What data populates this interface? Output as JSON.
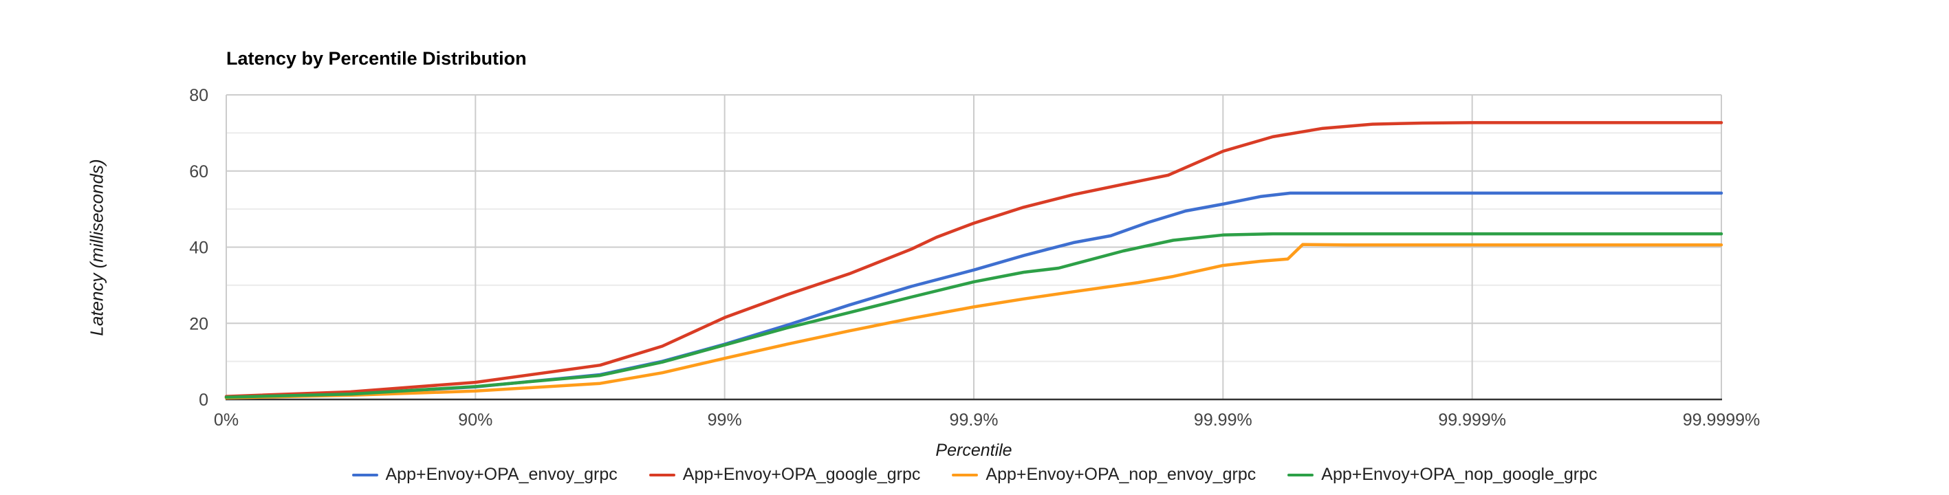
{
  "title": "Latency by Percentile Distribution",
  "chart_data": {
    "type": "line",
    "title": "Latency by Percentile Distribution",
    "xlabel": "Percentile",
    "ylabel": "Latency (milliseconds)",
    "x_scale": "log-percentile (number of nines): 0%=0, 90%=1, 99%=2, 99.9%=3, 99.99%=4, 99.999%=5, 99.9999%=6",
    "x_ticks": [
      {
        "label": "0%",
        "nines": 0
      },
      {
        "label": "90%",
        "nines": 1
      },
      {
        "label": "99%",
        "nines": 2
      },
      {
        "label": "99.9%",
        "nines": 3
      },
      {
        "label": "99.99%",
        "nines": 4
      },
      {
        "label": "99.999%",
        "nines": 5
      },
      {
        "label": "99.9999%",
        "nines": 6
      }
    ],
    "y_major_ticks": [
      0,
      20,
      40,
      60,
      80
    ],
    "y_minor_gridlines": [
      10,
      30,
      50,
      70
    ],
    "ylim": [
      0,
      80
    ],
    "xlim_nines": [
      0,
      6
    ],
    "grid": true,
    "legend_position": "bottom",
    "units": "milliseconds",
    "series": [
      {
        "name": "App+Envoy+OPA_envoy_grpc",
        "color": "#3E6FD0",
        "points_nines_ms": [
          [
            0,
            0.6
          ],
          [
            0.5,
            1.4
          ],
          [
            1,
            3.3
          ],
          [
            1.5,
            6.5
          ],
          [
            1.75,
            10
          ],
          [
            2,
            14.5
          ],
          [
            2.25,
            19.5
          ],
          [
            2.5,
            24.8
          ],
          [
            2.75,
            29.7
          ],
          [
            3,
            34
          ],
          [
            3.2,
            37.8
          ],
          [
            3.4,
            41.2
          ],
          [
            3.55,
            43
          ],
          [
            3.7,
            46.5
          ],
          [
            3.85,
            49.5
          ],
          [
            4,
            51.3
          ],
          [
            4.15,
            53.3
          ],
          [
            4.27,
            54.2
          ],
          [
            4.5,
            54.2
          ],
          [
            5,
            54.2
          ],
          [
            5.5,
            54.2
          ],
          [
            6,
            54.2
          ]
        ]
      },
      {
        "name": "App+Envoy+OPA_google_grpc",
        "color": "#D93C25",
        "points_nines_ms": [
          [
            0,
            0.8
          ],
          [
            0.5,
            2.0
          ],
          [
            1,
            4.5
          ],
          [
            1.5,
            9
          ],
          [
            1.75,
            14
          ],
          [
            2,
            21.5
          ],
          [
            2.25,
            27.5
          ],
          [
            2.5,
            33
          ],
          [
            2.75,
            39.5
          ],
          [
            2.85,
            42.6
          ],
          [
            3,
            46.3
          ],
          [
            3.2,
            50.5
          ],
          [
            3.4,
            53.8
          ],
          [
            3.6,
            56.5
          ],
          [
            3.78,
            58.9
          ],
          [
            4,
            65.2
          ],
          [
            4.2,
            69
          ],
          [
            4.4,
            71.2
          ],
          [
            4.6,
            72.3
          ],
          [
            4.8,
            72.6
          ],
          [
            5,
            72.7
          ],
          [
            5.5,
            72.7
          ],
          [
            6,
            72.7
          ]
        ]
      },
      {
        "name": "App+Envoy+OPA_nop_envoy_grpc",
        "color": "#FF9C1A",
        "points_nines_ms": [
          [
            0,
            0.4
          ],
          [
            0.5,
            1.1
          ],
          [
            1,
            2.2
          ],
          [
            1.5,
            4.2
          ],
          [
            1.75,
            7
          ],
          [
            2,
            10.8
          ],
          [
            2.25,
            14.5
          ],
          [
            2.5,
            18
          ],
          [
            2.75,
            21.3
          ],
          [
            3,
            24.3
          ],
          [
            3.2,
            26.4
          ],
          [
            3.4,
            28.3
          ],
          [
            3.66,
            30.7
          ],
          [
            3.8,
            32.3
          ],
          [
            4,
            35.2
          ],
          [
            4.15,
            36.3
          ],
          [
            4.26,
            36.9
          ],
          [
            4.32,
            40.7
          ],
          [
            4.5,
            40.6
          ],
          [
            5,
            40.6
          ],
          [
            5.5,
            40.6
          ],
          [
            6,
            40.6
          ]
        ]
      },
      {
        "name": "App+Envoy+OPA_nop_google_grpc",
        "color": "#2DA047",
        "points_nines_ms": [
          [
            0,
            0.6
          ],
          [
            0.5,
            1.4
          ],
          [
            1,
            3.4
          ],
          [
            1.5,
            6.3
          ],
          [
            1.75,
            9.8
          ],
          [
            2,
            14.3
          ],
          [
            2.25,
            18.8
          ],
          [
            2.5,
            22.8
          ],
          [
            2.75,
            26.9
          ],
          [
            3,
            30.9
          ],
          [
            3.2,
            33.4
          ],
          [
            3.34,
            34.5
          ],
          [
            3.6,
            39
          ],
          [
            3.8,
            41.8
          ],
          [
            4,
            43.2
          ],
          [
            4.2,
            43.5
          ],
          [
            4.5,
            43.5
          ],
          [
            5,
            43.5
          ],
          [
            5.5,
            43.5
          ],
          [
            6,
            43.5
          ]
        ]
      }
    ]
  },
  "colors": {
    "background": "#ffffff",
    "grid_major": "#cccccc",
    "grid_minor": "#ebebeb",
    "axis_baseline": "#333333",
    "tick_text": "#444444",
    "title_text": "#000000",
    "legend_text": "#222222"
  }
}
